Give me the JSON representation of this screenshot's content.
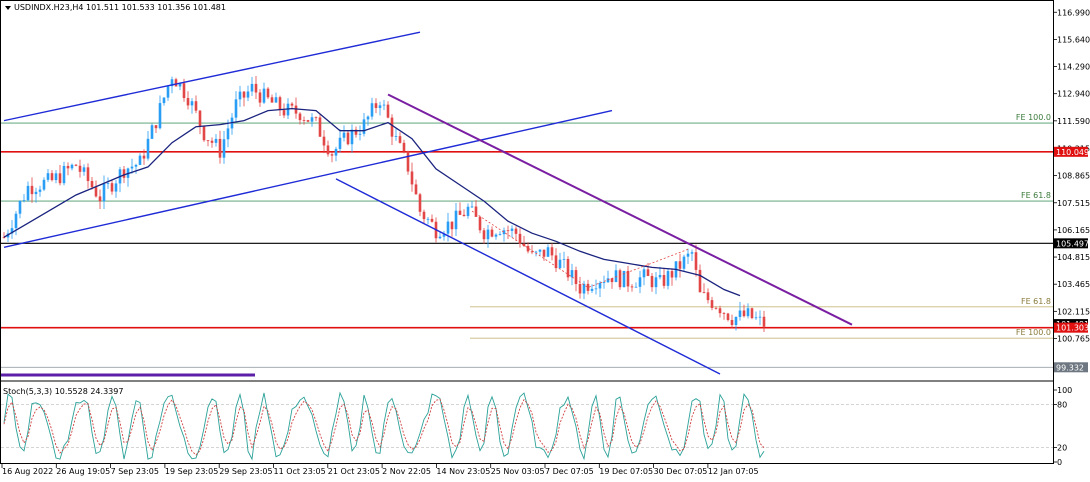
{
  "header": {
    "symbol_info": "USDINDX.H23,H4  101.511 101.533 101.356 101.481"
  },
  "indicator": {
    "label": "Stoch(5,3,3) 10.5528 24.3397",
    "levels": [
      100,
      80,
      20,
      0
    ]
  },
  "colors": {
    "candle_up": "#2a9df4",
    "candle_down": "#e24646",
    "ma": "#1a237e",
    "channel": "#1f2bd6",
    "resistance": "#7a1fa2",
    "red_level": "#e01010",
    "stoch_main": "#2aa198",
    "stoch_signal": "#d04040"
  },
  "chart_data": {
    "type": "candlestick",
    "x_labels": [
      "16 Aug 2022",
      "26 Aug 19:05",
      "7 Sep 23:05",
      "19 Sep 23:05",
      "29 Sep 23:05",
      "11 Oct 23:05",
      "21 Oct 23:05",
      "2 Nov 22:05",
      "14 Nov 23:05",
      "25 Nov 03:05",
      "7 Dec 07:05",
      "19 Dec 07:05",
      "30 Dec 07:05",
      "12 Jan 07:05"
    ],
    "y_ticks": [
      "116.990",
      "115.640",
      "114.290",
      "112.940",
      "111.590",
      "110.215",
      "108.865",
      "107.515",
      "106.165",
      "104.815",
      "103.465",
      "102.115",
      "100.765"
    ],
    "ylim": [
      98.7,
      117.5
    ],
    "price_tags": [
      {
        "value": 110.049,
        "text": "110.049",
        "style": "red"
      },
      {
        "value": 105.497,
        "text": "105.497",
        "style": "black"
      },
      {
        "value": 101.481,
        "text": "101.481",
        "style": "black"
      },
      {
        "value": 101.303,
        "text": "101.303",
        "style": "red"
      },
      {
        "value": 99.332,
        "text": "99.332",
        "style": "grey"
      }
    ],
    "fib_labels": [
      {
        "value": 111.48,
        "text": "FE 100.0"
      },
      {
        "value": 107.6,
        "text": "FE 61.8"
      },
      {
        "value": 102.34,
        "text": "FE 61.8"
      },
      {
        "value": 100.78,
        "text": "FE 100.0"
      }
    ],
    "close_waypoints": [
      [
        0,
        105.8
      ],
      [
        6,
        108.3
      ],
      [
        12,
        108.6
      ],
      [
        18,
        109.4
      ],
      [
        24,
        107.8
      ],
      [
        30,
        109.2
      ],
      [
        34,
        109.5
      ],
      [
        38,
        111.6
      ],
      [
        42,
        113.9
      ],
      [
        46,
        112.8
      ],
      [
        50,
        111.0
      ],
      [
        54,
        110.1
      ],
      [
        58,
        112.4
      ],
      [
        62,
        113.2
      ],
      [
        66,
        112.6
      ],
      [
        70,
        112.1
      ],
      [
        74,
        112.0
      ],
      [
        78,
        111.4
      ],
      [
        82,
        110.0
      ],
      [
        86,
        110.8
      ],
      [
        90,
        111.4
      ],
      [
        94,
        112.7
      ],
      [
        98,
        110.6
      ],
      [
        101,
        109.3
      ],
      [
        104,
        107.1
      ],
      [
        108,
        106.2
      ],
      [
        112,
        106.5
      ],
      [
        116,
        107.2
      ],
      [
        120,
        106.1
      ],
      [
        124,
        106.3
      ],
      [
        128,
        106.0
      ],
      [
        132,
        104.8
      ],
      [
        136,
        105.1
      ],
      [
        140,
        104.3
      ],
      [
        144,
        103.3
      ],
      [
        148,
        103.7
      ],
      [
        152,
        103.9
      ],
      [
        156,
        103.6
      ],
      [
        160,
        103.8
      ],
      [
        164,
        103.5
      ],
      [
        168,
        104.2
      ],
      [
        172,
        105.0
      ],
      [
        174,
        102.9
      ],
      [
        178,
        102.5
      ],
      [
        182,
        101.8
      ],
      [
        186,
        101.9
      ],
      [
        190,
        101.48
      ]
    ],
    "ma_waypoints": [
      [
        0,
        105.8
      ],
      [
        6,
        106.5
      ],
      [
        12,
        107.2
      ],
      [
        18,
        107.9
      ],
      [
        24,
        108.4
      ],
      [
        30,
        108.9
      ],
      [
        36,
        109.3
      ],
      [
        42,
        110.5
      ],
      [
        48,
        111.3
      ],
      [
        54,
        111.4
      ],
      [
        60,
        111.6
      ],
      [
        66,
        112.1
      ],
      [
        72,
        112.2
      ],
      [
        78,
        112.1
      ],
      [
        84,
        111.1
      ],
      [
        90,
        111.1
      ],
      [
        96,
        111.5
      ],
      [
        102,
        110.7
      ],
      [
        108,
        109.2
      ],
      [
        114,
        108.4
      ],
      [
        120,
        107.6
      ],
      [
        126,
        106.6
      ],
      [
        132,
        106.0
      ],
      [
        138,
        105.6
      ],
      [
        144,
        105.1
      ],
      [
        150,
        104.7
      ],
      [
        156,
        104.5
      ],
      [
        162,
        104.3
      ],
      [
        168,
        104.2
      ],
      [
        174,
        103.9
      ],
      [
        180,
        103.2
      ],
      [
        184,
        102.9
      ]
    ],
    "trendlines": [
      {
        "from": [
          0,
          111.6
        ],
        "to": [
          104,
          116.0
        ],
        "color": "channel"
      },
      {
        "from": [
          0,
          105.3
        ],
        "to": [
          152,
          112.1
        ],
        "color": "channel"
      },
      {
        "from": [
          83,
          108.7
        ],
        "to": [
          179,
          99.0
        ],
        "color": "channel"
      },
      {
        "from": [
          96,
          112.9
        ],
        "to": [
          212,
          101.45
        ],
        "color": "resistance"
      }
    ],
    "stoch": {
      "levels": [
        100,
        80,
        20,
        0
      ],
      "main_last": 10.5528,
      "signal_last": 24.3397
    }
  }
}
